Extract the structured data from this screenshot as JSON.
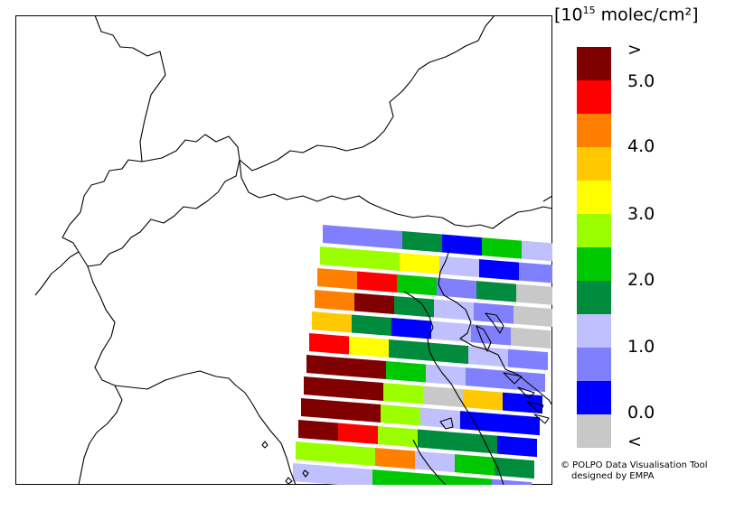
{
  "legend": {
    "unit_prefix": "[10",
    "unit_exponent": "15",
    "unit_suffix": " molec/cm²]",
    "ticks": [
      ">",
      "5.0",
      "4.0",
      "3.0",
      "2.0",
      "1.0",
      "0.0",
      "<"
    ],
    "color_bins": [
      "#800000",
      "#ff0000",
      "#ff8000",
      "#ffc800",
      "#ffff00",
      "#9bff00",
      "#00c800",
      "#008c3c",
      "#c0c0ff",
      "#8080ff",
      "#0000ff",
      "#c8c8c8"
    ]
  },
  "credits": {
    "line1": "© POLPO Data Visualisation Tool",
    "line2": "designed by EMPA"
  },
  "swath": {
    "description_colors": "color bin index per pixel (0 = '>' dark red ... 11 = '<' gray)",
    "rows": [
      [
        9,
        9,
        7,
        10,
        6,
        8
      ],
      [
        5,
        5,
        4,
        8,
        10,
        9
      ],
      [
        2,
        1,
        6,
        9,
        7,
        11
      ],
      [
        2,
        0,
        7,
        8,
        9,
        11
      ],
      [
        3,
        7,
        10,
        8,
        9,
        11
      ],
      [
        1,
        4,
        7,
        7,
        8,
        9
      ],
      [
        0,
        0,
        6,
        8,
        9,
        9
      ],
      [
        0,
        0,
        5,
        11,
        3,
        10
      ],
      [
        0,
        0,
        5,
        8,
        10,
        10
      ],
      [
        0,
        1,
        5,
        7,
        7,
        10
      ],
      [
        5,
        5,
        2,
        8,
        6,
        7
      ],
      [
        8,
        8,
        6,
        6,
        6,
        9
      ],
      [
        9,
        9,
        5,
        1,
        5,
        8
      ]
    ]
  }
}
